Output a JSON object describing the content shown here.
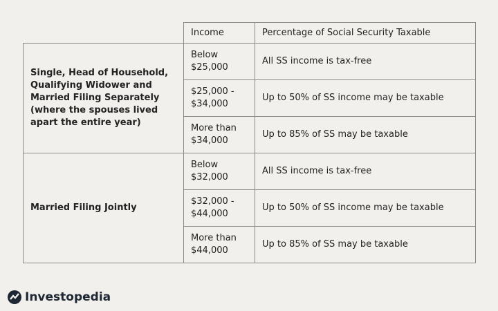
{
  "table": {
    "header": [
      "Income",
      "Percentage of Social Security Taxable"
    ],
    "groups": [
      {
        "label": "Single, Head of Household, Qualifying Widower and Married Filing Separately (where the spouses lived apart the entire year)",
        "rows": [
          [
            "Below $25,000",
            "All SS income is tax-free"
          ],
          [
            "$25,000 - $34,000",
            "Up to 50% of SS income may be taxable"
          ],
          [
            "More than $34,000",
            "Up to 85% of SS may be taxable"
          ]
        ]
      },
      {
        "label": "Married Filing Jointly",
        "rows": [
          [
            "Below $32,000",
            "All SS income is tax-free"
          ],
          [
            "$32,000 - $44,000",
            "Up to 50% of SS income may be taxable"
          ],
          [
            "More than $44,000",
            "Up to 85% of SS may be taxable"
          ]
        ]
      }
    ]
  },
  "logo": "Investopedia"
}
